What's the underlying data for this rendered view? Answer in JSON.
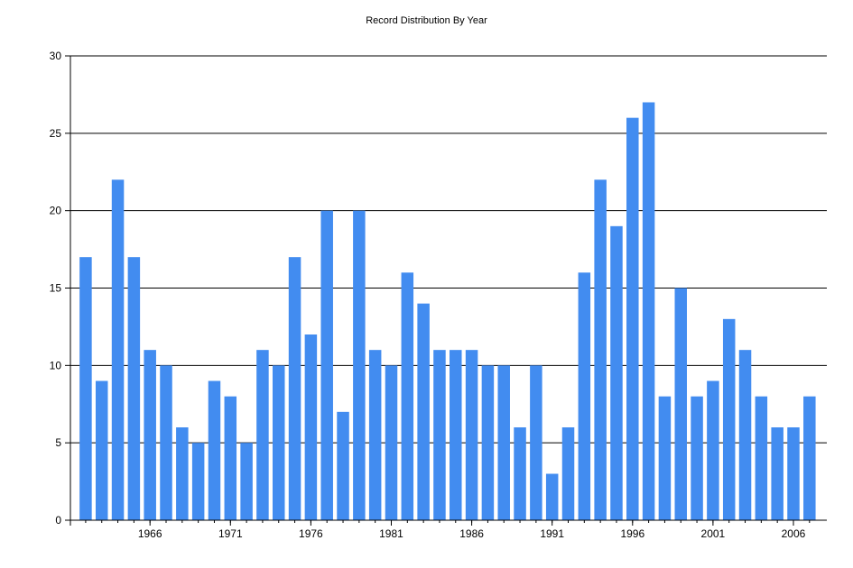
{
  "chart_data": {
    "type": "bar",
    "title": "Record Distribution By Year",
    "xlabel": "",
    "ylabel": "",
    "ylim": [
      0,
      30
    ],
    "yticks": [
      0,
      5,
      10,
      15,
      20,
      25,
      30
    ],
    "xtick_labels": [
      "1966",
      "1971",
      "1976",
      "1981",
      "1986",
      "1991",
      "1996",
      "2001",
      "2006"
    ],
    "grid": "horizontal",
    "bar_color": "#428CF0",
    "categories": [
      1962,
      1963,
      1964,
      1965,
      1966,
      1967,
      1968,
      1969,
      1970,
      1971,
      1972,
      1973,
      1974,
      1975,
      1976,
      1977,
      1978,
      1979,
      1980,
      1981,
      1982,
      1983,
      1984,
      1985,
      1986,
      1987,
      1988,
      1989,
      1990,
      1991,
      1992,
      1993,
      1994,
      1995,
      1996,
      1997,
      1998,
      1999,
      2000,
      2001,
      2002,
      2003,
      2004,
      2005,
      2006,
      2007
    ],
    "values": [
      17,
      9,
      22,
      17,
      11,
      10,
      6,
      5,
      9,
      8,
      5,
      11,
      10,
      17,
      12,
      20,
      7,
      20,
      11,
      10,
      16,
      14,
      11,
      11,
      11,
      10,
      10,
      6,
      10,
      3,
      6,
      16,
      22,
      19,
      26,
      27,
      8,
      15,
      8,
      9,
      13,
      11,
      8,
      6,
      6,
      8
    ]
  }
}
